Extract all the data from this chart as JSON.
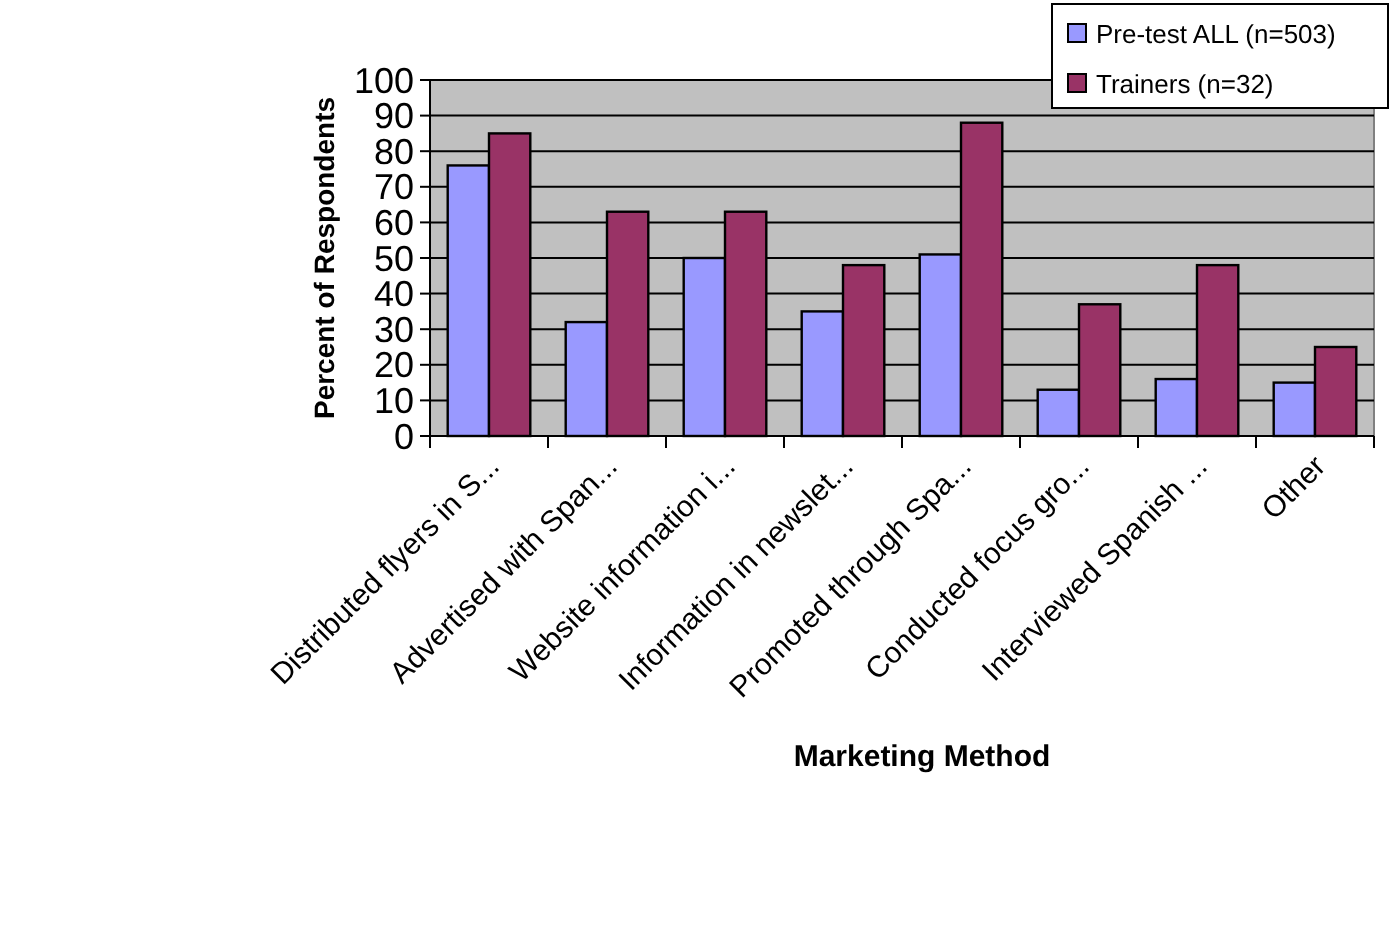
{
  "chart_data": {
    "type": "bar",
    "xlabel": "Marketing Method",
    "ylabel": "Percent of Respondents",
    "categories": [
      "Distributed flyers in S...",
      "Advertised with Span...",
      "Website information i...",
      "Information in newslet...",
      "Promoted through Spa...",
      "Conducted focus gro...",
      "Interviewed Spanish ...",
      "Other"
    ],
    "series": [
      {
        "name": "Pre-test ALL (n=503)",
        "color": "#9999ff",
        "values": [
          76,
          32,
          50,
          35,
          51,
          13,
          16,
          15
        ]
      },
      {
        "name": "Trainers (n=32)",
        "color": "#993366",
        "values": [
          85,
          63,
          63,
          48,
          88,
          37,
          48,
          25
        ]
      }
    ],
    "ylim": [
      0,
      100
    ],
    "yticks": [
      0,
      10,
      20,
      30,
      40,
      50,
      60,
      70,
      80,
      90,
      100
    ],
    "grid": "y",
    "legend": "top right"
  }
}
